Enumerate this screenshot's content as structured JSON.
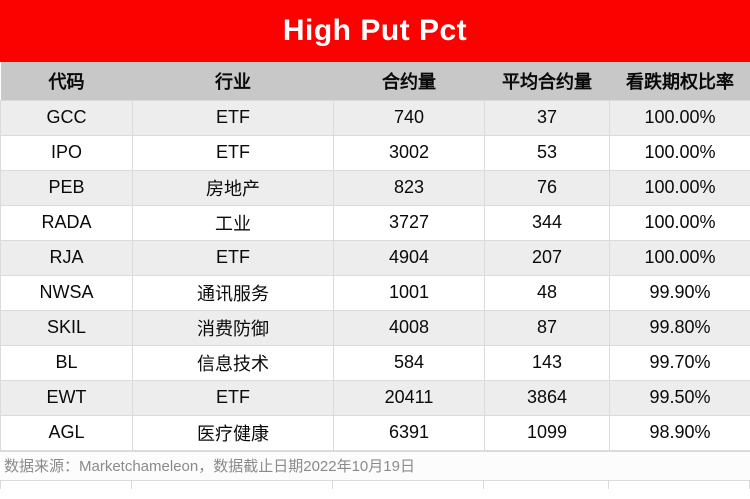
{
  "banner": {
    "title": "High Put Pct"
  },
  "table": {
    "columns": [
      "代码",
      "行业",
      "合约量",
      "平均合约量",
      "看跌期权比率"
    ],
    "rows": [
      {
        "code": "GCC",
        "industry": "ETF",
        "volume": "740",
        "avg_volume": "37",
        "put_pct": "100.00%"
      },
      {
        "code": "IPO",
        "industry": "ETF",
        "volume": "3002",
        "avg_volume": "53",
        "put_pct": "100.00%"
      },
      {
        "code": "PEB",
        "industry": "房地产",
        "volume": "823",
        "avg_volume": "76",
        "put_pct": "100.00%"
      },
      {
        "code": "RADA",
        "industry": "工业",
        "volume": "3727",
        "avg_volume": "344",
        "put_pct": "100.00%"
      },
      {
        "code": "RJA",
        "industry": "ETF",
        "volume": "4904",
        "avg_volume": "207",
        "put_pct": "100.00%"
      },
      {
        "code": "NWSA",
        "industry": "通讯服务",
        "volume": "1001",
        "avg_volume": "48",
        "put_pct": "99.90%"
      },
      {
        "code": "SKIL",
        "industry": "消费防御",
        "volume": "4008",
        "avg_volume": "87",
        "put_pct": "99.80%"
      },
      {
        "code": "BL",
        "industry": "信息技术",
        "volume": "584",
        "avg_volume": "143",
        "put_pct": "99.70%"
      },
      {
        "code": "EWT",
        "industry": "ETF",
        "volume": "20411",
        "avg_volume": "3864",
        "put_pct": "99.50%"
      },
      {
        "code": "AGL",
        "industry": "医疗健康",
        "volume": "6391",
        "avg_volume": "1099",
        "put_pct": "98.90%"
      }
    ]
  },
  "footer": {
    "source_note": "数据来源：Marketchameleon，数据截止日期2022年10月19日"
  },
  "colors": {
    "banner_red": "#FB0100",
    "title_text": "#FFFFFF",
    "header_gray": "#C8C8C8",
    "row_stripe_gray": "#EDEDED",
    "row_white": "#FFFFFF",
    "cell_border": "#D9DBDD",
    "cell_text": "#0A0A0A",
    "footer_text": "#8A8A8A"
  }
}
